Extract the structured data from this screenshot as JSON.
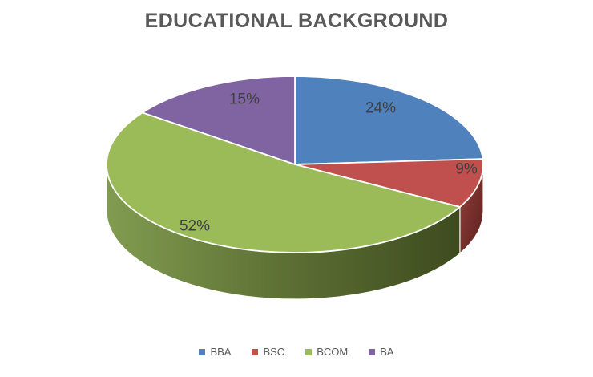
{
  "chart_data": {
    "type": "pie",
    "three_d": true,
    "title": "EDUCATIONAL BACKGROUND",
    "categories": [
      "BBA",
      "BSC",
      "BCOM",
      "BA"
    ],
    "values": [
      24,
      9,
      52,
      15
    ],
    "unit": "%",
    "data_labels": [
      "24%",
      "9%",
      "52%",
      "15%"
    ],
    "slice_colors": [
      "#4F81BD",
      "#C0504D",
      "#9BBB59",
      "#8064A2"
    ],
    "wall_colors": [
      null,
      [
        "#94423D",
        "#5C1F1C"
      ],
      [
        "#819C50",
        "#5D7034",
        "#3E4B1F"
      ],
      null
    ],
    "start_angle_deg": 0,
    "direction": "clockwise",
    "legend_position": "bottom",
    "title_color": "#595959",
    "label_color": "#404040",
    "legend_text_color": "#595959",
    "background": "#FFFFFF"
  }
}
